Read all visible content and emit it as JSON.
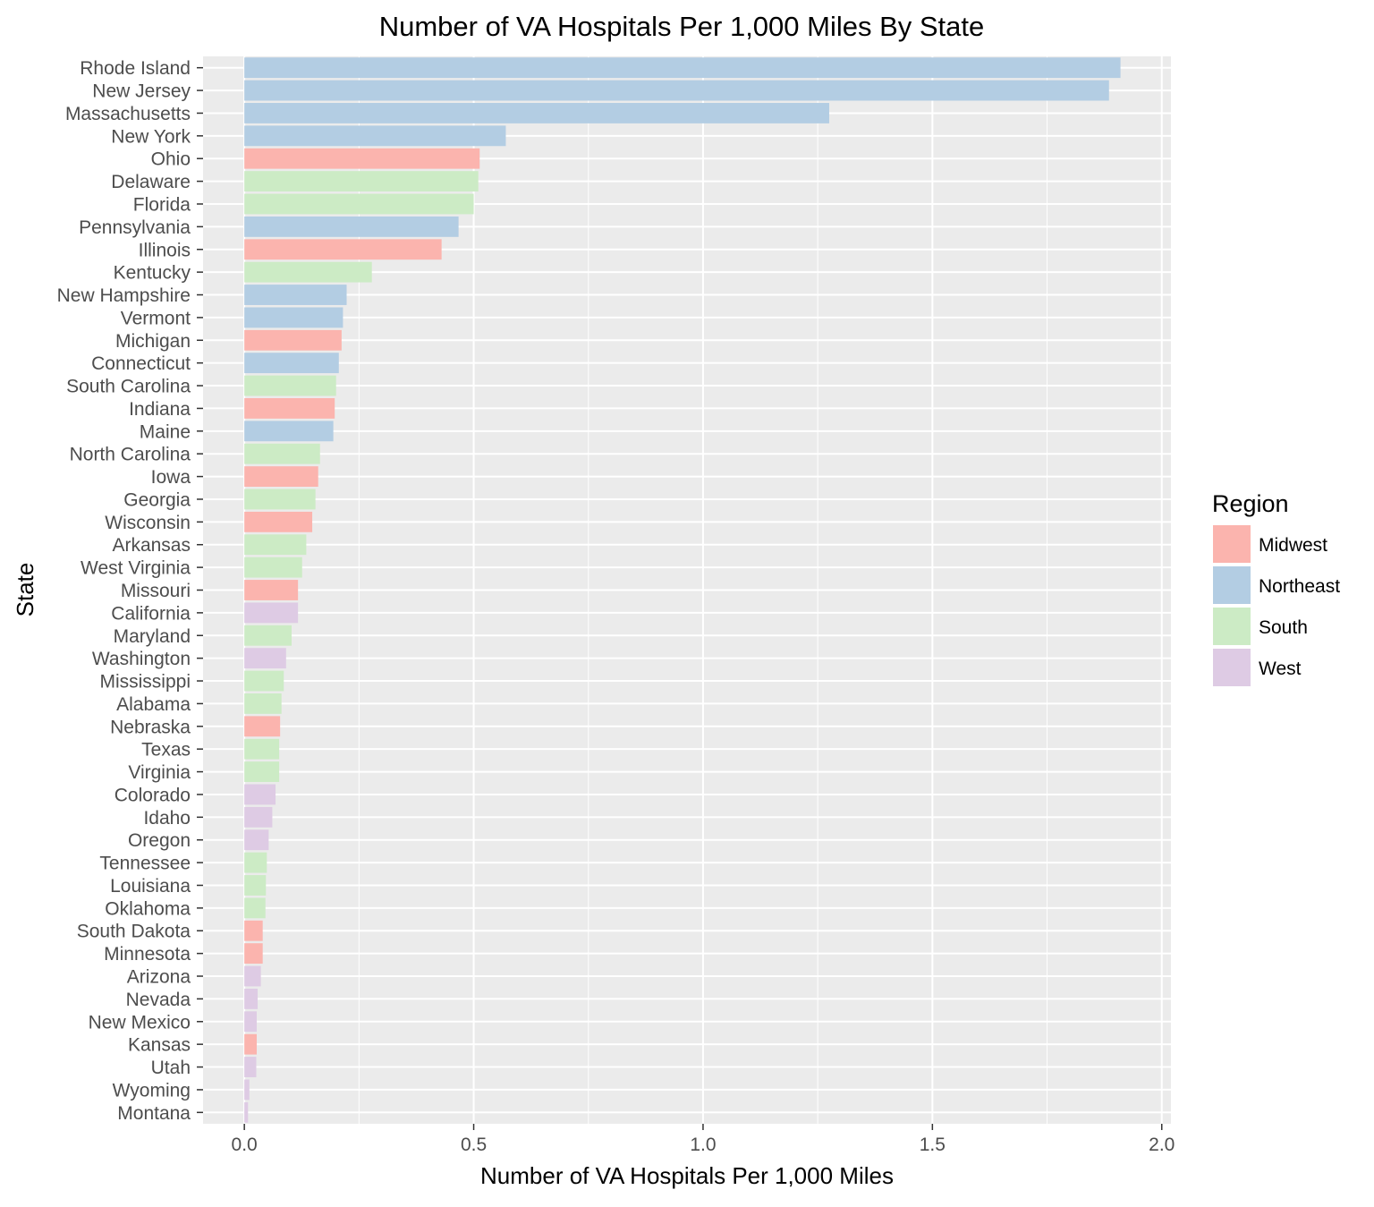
{
  "chart_data": {
    "type": "bar",
    "orientation": "horizontal",
    "title": "Number of VA Hospitals Per 1,000 Miles By State",
    "xlabel": "Number of VA Hospitals Per 1,000 Miles",
    "ylabel": "State",
    "xlim": [
      -0.09,
      2.02
    ],
    "x_ticks": [
      "0.0",
      "0.5",
      "1.0",
      "1.5",
      "2.0"
    ],
    "x_tick_values": [
      0.0,
      0.5,
      1.0,
      1.5,
      2.0
    ],
    "grid": true,
    "legend": {
      "title": "Region",
      "position": "right",
      "entries": [
        {
          "label": "Midwest",
          "color": "#fbb4ae"
        },
        {
          "label": "Northeast",
          "color": "#b3cde3"
        },
        {
          "label": "South",
          "color": "#ccebc5"
        },
        {
          "label": "West",
          "color": "#decbe4"
        }
      ]
    },
    "categories": [
      "Rhode Island",
      "New Jersey",
      "Massachusetts",
      "New York",
      "Ohio",
      "Delaware",
      "Florida",
      "Pennsylvania",
      "Illinois",
      "Kentucky",
      "New Hampshire",
      "Vermont",
      "Michigan",
      "Connecticut",
      "South Carolina",
      "Indiana",
      "Maine",
      "North Carolina",
      "Iowa",
      "Georgia",
      "Wisconsin",
      "Arkansas",
      "West Virginia",
      "Missouri",
      "California",
      "Maryland",
      "Washington",
      "Mississippi",
      "Alabama",
      "Nebraska",
      "Texas",
      "Virginia",
      "Colorado",
      "Idaho",
      "Oregon",
      "Tennessee",
      "Louisiana",
      "Oklahoma",
      "South Dakota",
      "Minnesota",
      "Arizona",
      "Nevada",
      "New Mexico",
      "Kansas",
      "Utah",
      "Wyoming",
      "Montana"
    ],
    "values": [
      1.91,
      1.885,
      1.275,
      0.57,
      0.513,
      0.51,
      0.5,
      0.467,
      0.43,
      0.278,
      0.223,
      0.215,
      0.212,
      0.206,
      0.2,
      0.197,
      0.194,
      0.165,
      0.161,
      0.155,
      0.148,
      0.135,
      0.126,
      0.117,
      0.117,
      0.103,
      0.091,
      0.086,
      0.081,
      0.078,
      0.076,
      0.076,
      0.068,
      0.061,
      0.053,
      0.049,
      0.047,
      0.046,
      0.04,
      0.04,
      0.036,
      0.029,
      0.027,
      0.027,
      0.026,
      0.011,
      0.008
    ],
    "regions": [
      "Northeast",
      "Northeast",
      "Northeast",
      "Northeast",
      "Midwest",
      "South",
      "South",
      "Northeast",
      "Midwest",
      "South",
      "Northeast",
      "Northeast",
      "Midwest",
      "Northeast",
      "South",
      "Midwest",
      "Northeast",
      "South",
      "Midwest",
      "South",
      "Midwest",
      "South",
      "South",
      "Midwest",
      "West",
      "South",
      "West",
      "South",
      "South",
      "Midwest",
      "South",
      "South",
      "West",
      "West",
      "West",
      "South",
      "South",
      "South",
      "Midwest",
      "Midwest",
      "West",
      "West",
      "West",
      "Midwest",
      "West",
      "West",
      "West"
    ]
  }
}
